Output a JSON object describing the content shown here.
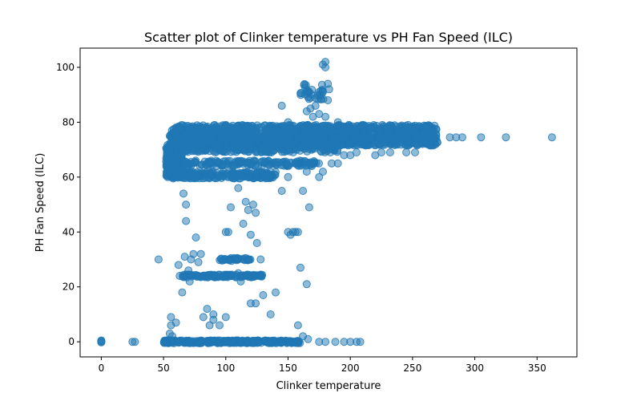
{
  "chart_data": {
    "type": "scatter",
    "title": "Scatter plot of Clinker temperature vs PH Fan Speed (ILC)",
    "xlabel": "Clinker temperature",
    "ylabel": "PH Fan Speed (ILC)",
    "xlim": [
      -17,
      382
    ],
    "ylim": [
      -5.5,
      107
    ],
    "xticks": [
      0,
      50,
      100,
      150,
      200,
      250,
      300,
      350
    ],
    "yticks": [
      0,
      20,
      40,
      60,
      80,
      100
    ],
    "grid": false,
    "color": "#1f77b4",
    "bands": [
      {
        "x": [
          55,
          270
        ],
        "y": [
          71.5,
          79
        ],
        "count": 1400
      },
      {
        "x": [
          55,
          190
        ],
        "y": [
          69,
          73
        ],
        "count": 350
      },
      {
        "x": [
          52,
          65
        ],
        "y": [
          60,
          72
        ],
        "count": 220
      },
      {
        "x": [
          55,
          140
        ],
        "y": [
          59.5,
          62
        ],
        "count": 220
      },
      {
        "x": [
          60,
          175
        ],
        "y": [
          64,
          66
        ],
        "count": 180
      },
      {
        "x": [
          65,
          130
        ],
        "y": [
          23.5,
          24.5
        ],
        "count": 120
      },
      {
        "x": [
          50,
          160
        ],
        "y": [
          -0.5,
          0.5
        ],
        "count": 300
      },
      {
        "x": [
          95,
          120
        ],
        "y": [
          29.5,
          30.5
        ],
        "count": 40
      },
      {
        "x": [
          160,
          180
        ],
        "y": [
          88,
          94
        ],
        "count": 30
      }
    ],
    "points": [
      [
        0,
        0
      ],
      [
        0,
        0.3
      ],
      [
        0,
        -0.2
      ],
      [
        0,
        0.5
      ],
      [
        25,
        0
      ],
      [
        27,
        0
      ],
      [
        46,
        30
      ],
      [
        55,
        3
      ],
      [
        56,
        9
      ],
      [
        56,
        6
      ],
      [
        57,
        2
      ],
      [
        60,
        7
      ],
      [
        62,
        28
      ],
      [
        63,
        24
      ],
      [
        65,
        18
      ],
      [
        66,
        54
      ],
      [
        68,
        50
      ],
      [
        68,
        44
      ],
      [
        67,
        31
      ],
      [
        70,
        26
      ],
      [
        71,
        22
      ],
      [
        72,
        30
      ],
      [
        74,
        32
      ],
      [
        76,
        38
      ],
      [
        78,
        29
      ],
      [
        80,
        32
      ],
      [
        82,
        9
      ],
      [
        85,
        12
      ],
      [
        87,
        6
      ],
      [
        90,
        10
      ],
      [
        90,
        8
      ],
      [
        95,
        6
      ],
      [
        100,
        9
      ],
      [
        100,
        40
      ],
      [
        104,
        49
      ],
      [
        102,
        40
      ],
      [
        110,
        56
      ],
      [
        114,
        43
      ],
      [
        116,
        51
      ],
      [
        118,
        48
      ],
      [
        120,
        39
      ],
      [
        122,
        50
      ],
      [
        124,
        47
      ],
      [
        125,
        36
      ],
      [
        128,
        30
      ],
      [
        130,
        17
      ],
      [
        124,
        14
      ],
      [
        120,
        14
      ],
      [
        110,
        25
      ],
      [
        112,
        22
      ],
      [
        115,
        24
      ],
      [
        136,
        10
      ],
      [
        140,
        18
      ],
      [
        145,
        55
      ],
      [
        145,
        86
      ],
      [
        150,
        60
      ],
      [
        150,
        40
      ],
      [
        152,
        39
      ],
      [
        154,
        40
      ],
      [
        156,
        40
      ],
      [
        158,
        40
      ],
      [
        160,
        27
      ],
      [
        162,
        55
      ],
      [
        165,
        21
      ],
      [
        167,
        49
      ],
      [
        168,
        85
      ],
      [
        172,
        86
      ],
      [
        175,
        90
      ],
      [
        178,
        91
      ],
      [
        178,
        101
      ],
      [
        180,
        102
      ],
      [
        180,
        100
      ],
      [
        182,
        94
      ],
      [
        183,
        92
      ],
      [
        182,
        88
      ],
      [
        175,
        60
      ],
      [
        178,
        62
      ],
      [
        165,
        62
      ],
      [
        158,
        6
      ],
      [
        162,
        2
      ],
      [
        166,
        1
      ],
      [
        175,
        0
      ],
      [
        180,
        0
      ],
      [
        188,
        0
      ],
      [
        195,
        0
      ],
      [
        200,
        0
      ],
      [
        205,
        0
      ],
      [
        208,
        0
      ],
      [
        185,
        65
      ],
      [
        190,
        65
      ],
      [
        195,
        68
      ],
      [
        200,
        68
      ],
      [
        205,
        69
      ],
      [
        220,
        68
      ],
      [
        225,
        69
      ],
      [
        232,
        69
      ],
      [
        245,
        69
      ],
      [
        252,
        69
      ],
      [
        262,
        76
      ],
      [
        265,
        76
      ],
      [
        280,
        74.5
      ],
      [
        285,
        74.5
      ],
      [
        290,
        74.5
      ],
      [
        305,
        74.5
      ],
      [
        325,
        74.5
      ],
      [
        362,
        74.5
      ],
      [
        60,
        77
      ],
      [
        58,
        76
      ],
      [
        100,
        79
      ],
      [
        150,
        80
      ],
      [
        170,
        82
      ],
      [
        175,
        83
      ],
      [
        180,
        82
      ],
      [
        165,
        84
      ],
      [
        172,
        78
      ],
      [
        190,
        80
      ],
      [
        210,
        79
      ],
      [
        230,
        78
      ]
    ]
  }
}
